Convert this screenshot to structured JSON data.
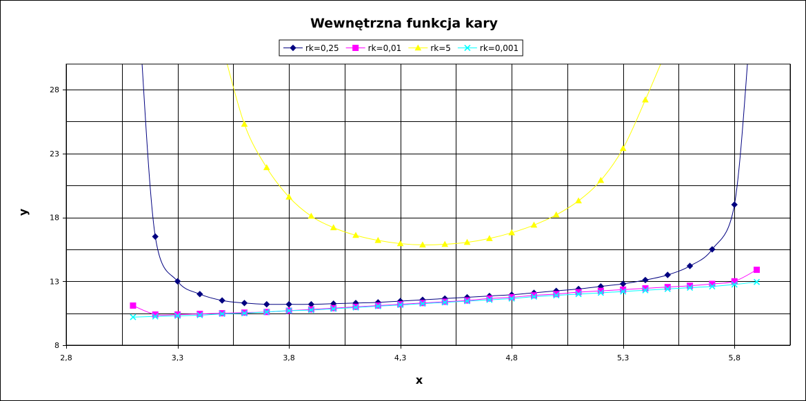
{
  "chart_data": {
    "type": "line",
    "title": "Wewnętrzna funkcja kary",
    "xlabel": "x",
    "ylabel": "y",
    "xlim": [
      2.8,
      6.05
    ],
    "ylim": [
      8,
      30
    ],
    "x_ticks": [
      2.8,
      3.3,
      3.8,
      4.3,
      4.8,
      5.3,
      5.8
    ],
    "x_tick_labels": [
      "2,8",
      "3,3",
      "3,8",
      "4,3",
      "4,8",
      "5,3",
      "5,8"
    ],
    "y_ticks": [
      8,
      13,
      18,
      23,
      28
    ],
    "y_tick_labels": [
      "8",
      "13",
      "18",
      "23",
      "28"
    ],
    "grid": "on",
    "legend_position": "top",
    "series": [
      {
        "name": "rk=0,25",
        "color": "#000080",
        "marker": "diamond",
        "points": [
          [
            3.2,
            16.5
          ],
          [
            3.3,
            13.0
          ],
          [
            3.4,
            12.0
          ],
          [
            3.5,
            11.5
          ],
          [
            3.6,
            11.3
          ],
          [
            3.7,
            11.2
          ],
          [
            3.8,
            11.2
          ],
          [
            3.9,
            11.2
          ],
          [
            4.0,
            11.25
          ],
          [
            4.1,
            11.3
          ],
          [
            4.2,
            11.35
          ],
          [
            4.3,
            11.45
          ],
          [
            4.4,
            11.55
          ],
          [
            4.5,
            11.65
          ],
          [
            4.6,
            11.75
          ],
          [
            4.7,
            11.85
          ],
          [
            4.8,
            11.95
          ],
          [
            4.9,
            12.1
          ],
          [
            5.0,
            12.25
          ],
          [
            5.1,
            12.4
          ],
          [
            5.2,
            12.6
          ],
          [
            5.3,
            12.8
          ],
          [
            5.4,
            13.1
          ],
          [
            5.5,
            13.5
          ],
          [
            5.6,
            14.2
          ],
          [
            5.7,
            15.5
          ],
          [
            5.8,
            19.0
          ]
        ]
      },
      {
        "name": "rk=0,01",
        "color": "#ff00ff",
        "marker": "square",
        "points": [
          [
            3.1,
            11.1
          ],
          [
            3.2,
            10.4
          ],
          [
            3.3,
            10.4
          ],
          [
            3.4,
            10.45
          ],
          [
            3.5,
            10.5
          ],
          [
            3.6,
            10.55
          ],
          [
            3.7,
            10.6
          ],
          [
            3.8,
            10.7
          ],
          [
            3.9,
            10.8
          ],
          [
            4.0,
            10.9
          ],
          [
            4.1,
            11.0
          ],
          [
            4.2,
            11.1
          ],
          [
            4.3,
            11.2
          ],
          [
            4.4,
            11.3
          ],
          [
            4.5,
            11.4
          ],
          [
            4.6,
            11.5
          ],
          [
            4.7,
            11.65
          ],
          [
            4.8,
            11.75
          ],
          [
            4.9,
            11.9
          ],
          [
            5.0,
            12.0
          ],
          [
            5.1,
            12.15
          ],
          [
            5.2,
            12.25
          ],
          [
            5.3,
            12.35
          ],
          [
            5.4,
            12.45
          ],
          [
            5.5,
            12.55
          ],
          [
            5.6,
            12.65
          ],
          [
            5.7,
            12.8
          ],
          [
            5.8,
            13.0
          ],
          [
            5.9,
            13.9
          ]
        ]
      },
      {
        "name": "rk=5",
        "color": "#ffff00",
        "marker": "triangle",
        "points": [
          [
            3.6,
            25.3
          ],
          [
            3.7,
            21.9
          ],
          [
            3.8,
            19.6
          ],
          [
            3.9,
            18.1
          ],
          [
            4.0,
            17.2
          ],
          [
            4.1,
            16.6
          ],
          [
            4.2,
            16.2
          ],
          [
            4.3,
            15.95
          ],
          [
            4.4,
            15.85
          ],
          [
            4.5,
            15.9
          ],
          [
            4.6,
            16.05
          ],
          [
            4.7,
            16.35
          ],
          [
            4.8,
            16.8
          ],
          [
            4.9,
            17.4
          ],
          [
            5.0,
            18.2
          ],
          [
            5.1,
            19.3
          ],
          [
            5.2,
            20.9
          ],
          [
            5.3,
            23.4
          ],
          [
            5.4,
            27.2
          ]
        ]
      },
      {
        "name": "rk=0,001",
        "color": "#00ffff",
        "marker": "x",
        "points": [
          [
            3.1,
            10.2
          ],
          [
            3.2,
            10.25
          ],
          [
            3.3,
            10.3
          ],
          [
            3.4,
            10.35
          ],
          [
            3.5,
            10.45
          ],
          [
            3.6,
            10.5
          ],
          [
            3.7,
            10.6
          ],
          [
            3.8,
            10.7
          ],
          [
            3.9,
            10.75
          ],
          [
            4.0,
            10.85
          ],
          [
            4.1,
            10.95
          ],
          [
            4.2,
            11.05
          ],
          [
            4.3,
            11.15
          ],
          [
            4.4,
            11.25
          ],
          [
            4.5,
            11.35
          ],
          [
            4.6,
            11.45
          ],
          [
            4.7,
            11.55
          ],
          [
            4.8,
            11.65
          ],
          [
            4.9,
            11.8
          ],
          [
            5.0,
            11.9
          ],
          [
            5.1,
            12.0
          ],
          [
            5.2,
            12.1
          ],
          [
            5.3,
            12.2
          ],
          [
            5.4,
            12.3
          ],
          [
            5.5,
            12.4
          ],
          [
            5.6,
            12.5
          ],
          [
            5.7,
            12.6
          ],
          [
            5.8,
            12.75
          ],
          [
            5.9,
            12.95
          ]
        ]
      }
    ]
  }
}
